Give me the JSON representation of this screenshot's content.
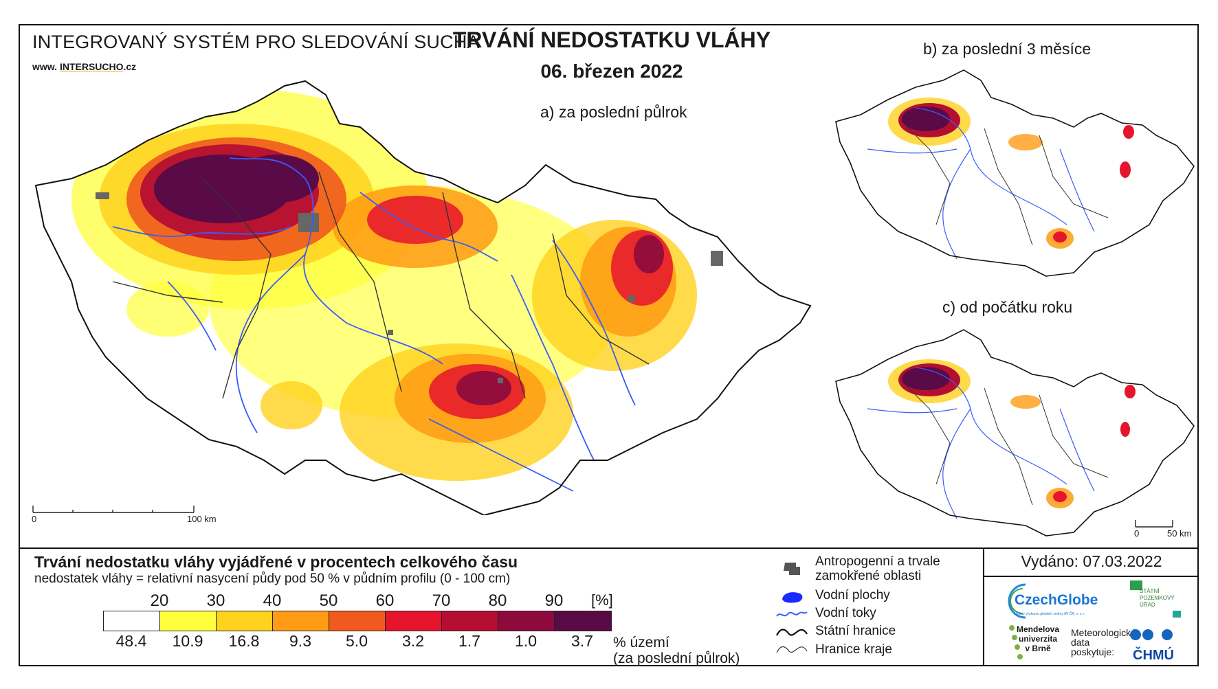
{
  "header": {
    "system_title": "INTEGROVANÝ SYSTÉM PRO SLEDOVÁNÍ SUCHA",
    "url_prefix": "www.",
    "url_a": "INTER",
    "url_b": "SUCHO",
    "url_suffix": ".cz",
    "main_title": "TRVÁNÍ NEDOSTATKU VLÁHY",
    "date": "06. březen 2022"
  },
  "maps": {
    "a_label": "a) za poslední půlrok",
    "b_label": "b) za poslední 3 měsíce",
    "c_label": "c) od počátku roku",
    "scale_main": {
      "start": "0",
      "end": "100 km"
    },
    "scale_small": {
      "start": "0",
      "end": "50 km"
    }
  },
  "legend": {
    "title": "Trvání nedostatku vláhy vyjádřené v procentech celkového času",
    "subtitle": "nedostatek vláhy = relativní nasycení půdy pod 50 % v půdním profilu (0 - 100 cm)",
    "unit": "[%]",
    "thresholds": [
      "20",
      "30",
      "40",
      "50",
      "60",
      "70",
      "80",
      "90"
    ],
    "classes": [
      {
        "color": "#ffffff",
        "area_pct": "48.4"
      },
      {
        "color": "#ffff3c",
        "area_pct": "10.9"
      },
      {
        "color": "#ffd21e",
        "area_pct": "16.8"
      },
      {
        "color": "#ff9b14",
        "area_pct": "9.3"
      },
      {
        "color": "#f05a1e",
        "area_pct": "5.0"
      },
      {
        "color": "#e6142d",
        "area_pct": "3.2"
      },
      {
        "color": "#b40f32",
        "area_pct": "1.7"
      },
      {
        "color": "#8c0a3c",
        "area_pct": "1.0"
      },
      {
        "color": "#5a0a46",
        "area_pct": "3.7"
      }
    ],
    "area_label_1": "% území",
    "area_label_2": "(za poslední půlrok)"
  },
  "symbols": [
    {
      "icon": "anthropogenic-icon",
      "label_1": "Antropogenní a trvale",
      "label_2": "zamokřené oblasti"
    },
    {
      "icon": "water-body-icon",
      "label_1": "Vodní plochy"
    },
    {
      "icon": "river-icon",
      "label_1": "Vodní toky"
    },
    {
      "icon": "state-border-icon",
      "label_1": "Státní hranice"
    },
    {
      "icon": "region-border-icon",
      "label_1": "Hranice kraje"
    }
  ],
  "footer": {
    "issued": "Vydáno: 07.03.2022",
    "czechglobe": "CzechGlobe",
    "czechglobe_sub": "Ústav výzkumu globální změny AV ČR, v. v. i.",
    "spu_1": "STÁTNÍ",
    "spu_2": "POZEMKOVÝ",
    "spu_3": "ÚŘAD",
    "mu_1": "Mendelova",
    "mu_2": "univerzita",
    "mu_3": "v Brně",
    "meteo_1": "Meteorologická",
    "meteo_2": "data",
    "meteo_3": "poskytuje:",
    "chmu": "ČHMÚ"
  },
  "colors": {
    "river": "#3a5bff",
    "border": "#222222",
    "urban": "#666666"
  }
}
